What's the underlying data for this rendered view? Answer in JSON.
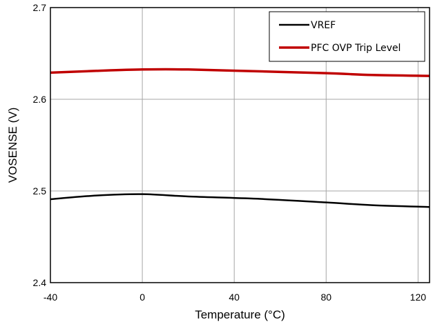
{
  "chart_data": {
    "type": "line",
    "title": "",
    "xlabel": "Temperature (°C)",
    "ylabel": "VOSENSE (V)",
    "xlim": [
      -40,
      125
    ],
    "ylim": [
      2.4,
      2.7
    ],
    "xticks": [
      -40,
      0,
      40,
      80,
      120
    ],
    "xtick_labels": [
      "-40",
      "0",
      "40",
      "80",
      "120"
    ],
    "yticks": [
      2.4,
      2.5,
      2.6,
      2.7
    ],
    "ytick_labels": [
      "2.4",
      "2.5",
      "2.6",
      "2.7"
    ],
    "grid": true,
    "legend_position": "top-right",
    "series": [
      {
        "name": "VREF",
        "color": "#000000",
        "x": [
          -40,
          -20,
          0,
          20,
          50,
          80,
          100,
          125
        ],
        "y": [
          2.491,
          2.495,
          2.4965,
          2.494,
          2.4915,
          2.4875,
          2.4845,
          2.4825
        ]
      },
      {
        "name": "PFC OVP Trip Level",
        "color": "#c00000",
        "x": [
          -40,
          -20,
          0,
          20,
          50,
          80,
          100,
          125
        ],
        "y": [
          2.629,
          2.631,
          2.6325,
          2.6325,
          2.6305,
          2.6285,
          2.6265,
          2.6255
        ]
      }
    ]
  }
}
